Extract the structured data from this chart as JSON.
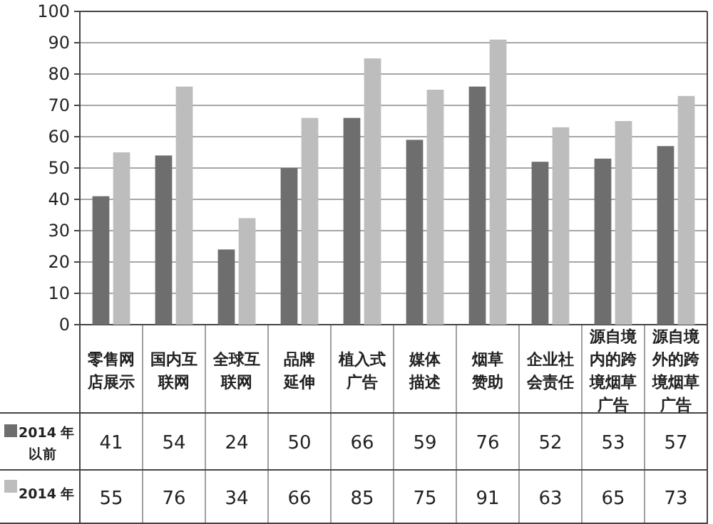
{
  "chart_data": {
    "type": "bar",
    "categories": [
      "零售网店展示",
      "国内互联网",
      "全球互联网",
      "品牌延伸",
      "植入式广告",
      "媒体描述",
      "烟草赞助",
      "企业社会责任",
      "源自境内的跨境烟草广告",
      "源自境外的跨境烟草广告"
    ],
    "series": [
      {
        "name": "2014 年以前",
        "color": "#6e6e6e",
        "values": [
          41,
          54,
          24,
          50,
          66,
          59,
          76,
          52,
          53,
          57
        ]
      },
      {
        "name": "2014 年",
        "color": "#bdbdbd",
        "values": [
          55,
          76,
          34,
          66,
          85,
          75,
          91,
          63,
          65,
          73
        ]
      }
    ],
    "ylim": [
      0,
      100
    ],
    "yticks": [
      0,
      10,
      20,
      30,
      40,
      50,
      60,
      70,
      80,
      90,
      100
    ],
    "grid": "y",
    "data_labels": true,
    "legend": "bottom left"
  }
}
